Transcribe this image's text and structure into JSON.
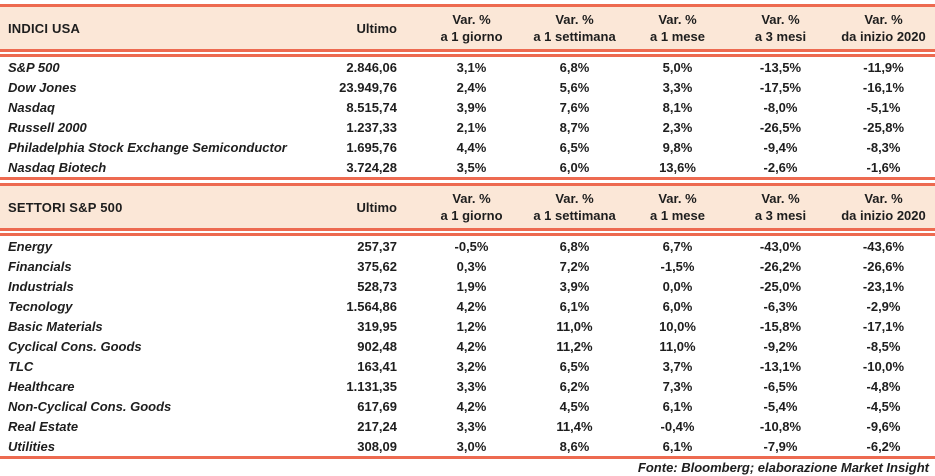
{
  "colors": {
    "accent": "#ED6A50",
    "header_bg": "#FBE7D7",
    "text": "#1E1E1E"
  },
  "columns": {
    "ultimo": "Ultimo",
    "var_cols": [
      {
        "line1": "Var. %",
        "line2": "a 1 giorno"
      },
      {
        "line1": "Var. %",
        "line2": "a 1 settimana"
      },
      {
        "line1": "Var. %",
        "line2": "a 1 mese"
      },
      {
        "line1": "Var. %",
        "line2": "a 3 mesi"
      },
      {
        "line1": "Var. %",
        "line2": "da inizio 2020"
      }
    ]
  },
  "sections": [
    {
      "title": "INDICI USA",
      "rows": [
        {
          "label": "S&P 500",
          "ultimo": "2.846,06",
          "vars": [
            "3,1%",
            "6,8%",
            "5,0%",
            "-13,5%",
            "-11,9%"
          ]
        },
        {
          "label": "Dow Jones",
          "ultimo": "23.949,76",
          "vars": [
            "2,4%",
            "5,6%",
            "3,3%",
            "-17,5%",
            "-16,1%"
          ]
        },
        {
          "label": "Nasdaq",
          "ultimo": "8.515,74",
          "vars": [
            "3,9%",
            "7,6%",
            "8,1%",
            "-8,0%",
            "-5,1%"
          ]
        },
        {
          "label": "Russell 2000",
          "ultimo": "1.237,33",
          "vars": [
            "2,1%",
            "8,7%",
            "2,3%",
            "-26,5%",
            "-25,8%"
          ]
        },
        {
          "label": "Philadelphia Stock Exchange Semiconductor",
          "ultimo": "1.695,76",
          "vars": [
            "4,4%",
            "6,5%",
            "9,8%",
            "-9,4%",
            "-8,3%"
          ]
        },
        {
          "label": "Nasdaq Biotech",
          "ultimo": "3.724,28",
          "vars": [
            "3,5%",
            "6,0%",
            "13,6%",
            "-2,6%",
            "-1,6%"
          ]
        }
      ]
    },
    {
      "title": "SETTORI S&P 500",
      "rows": [
        {
          "label": "Energy",
          "ultimo": "257,37",
          "vars": [
            "-0,5%",
            "6,8%",
            "6,7%",
            "-43,0%",
            "-43,6%"
          ]
        },
        {
          "label": "Financials",
          "ultimo": "375,62",
          "vars": [
            "0,3%",
            "7,2%",
            "-1,5%",
            "-26,2%",
            "-26,6%"
          ]
        },
        {
          "label": "Industrials",
          "ultimo": "528,73",
          "vars": [
            "1,9%",
            "3,9%",
            "0,0%",
            "-25,0%",
            "-23,1%"
          ]
        },
        {
          "label": "Tecnology",
          "ultimo": "1.564,86",
          "vars": [
            "4,2%",
            "6,1%",
            "6,0%",
            "-6,3%",
            "-2,9%"
          ]
        },
        {
          "label": "Basic Materials",
          "ultimo": "319,95",
          "vars": [
            "1,2%",
            "11,0%",
            "10,0%",
            "-15,8%",
            "-17,1%"
          ]
        },
        {
          "label": "Cyclical Cons. Goods",
          "ultimo": "902,48",
          "vars": [
            "4,2%",
            "11,2%",
            "11,0%",
            "-9,2%",
            "-8,5%"
          ]
        },
        {
          "label": "TLC",
          "ultimo": "163,41",
          "vars": [
            "3,2%",
            "6,5%",
            "3,7%",
            "-13,1%",
            "-10,0%"
          ]
        },
        {
          "label": "Healthcare",
          "ultimo": "1.131,35",
          "vars": [
            "3,3%",
            "6,2%",
            "7,3%",
            "-6,5%",
            "-4,8%"
          ]
        },
        {
          "label": "Non-Cyclical Cons. Goods",
          "ultimo": "617,69",
          "vars": [
            "4,2%",
            "4,5%",
            "6,1%",
            "-5,4%",
            "-4,5%"
          ]
        },
        {
          "label": "Real Estate",
          "ultimo": "217,24",
          "vars": [
            "3,3%",
            "11,4%",
            "-0,4%",
            "-10,8%",
            "-9,6%"
          ]
        },
        {
          "label": "Utilities",
          "ultimo": "308,09",
          "vars": [
            "3,0%",
            "8,6%",
            "6,1%",
            "-7,9%",
            "-6,2%"
          ]
        }
      ]
    }
  ],
  "footer": "Fonte: Bloomberg; elaborazione Market Insight"
}
